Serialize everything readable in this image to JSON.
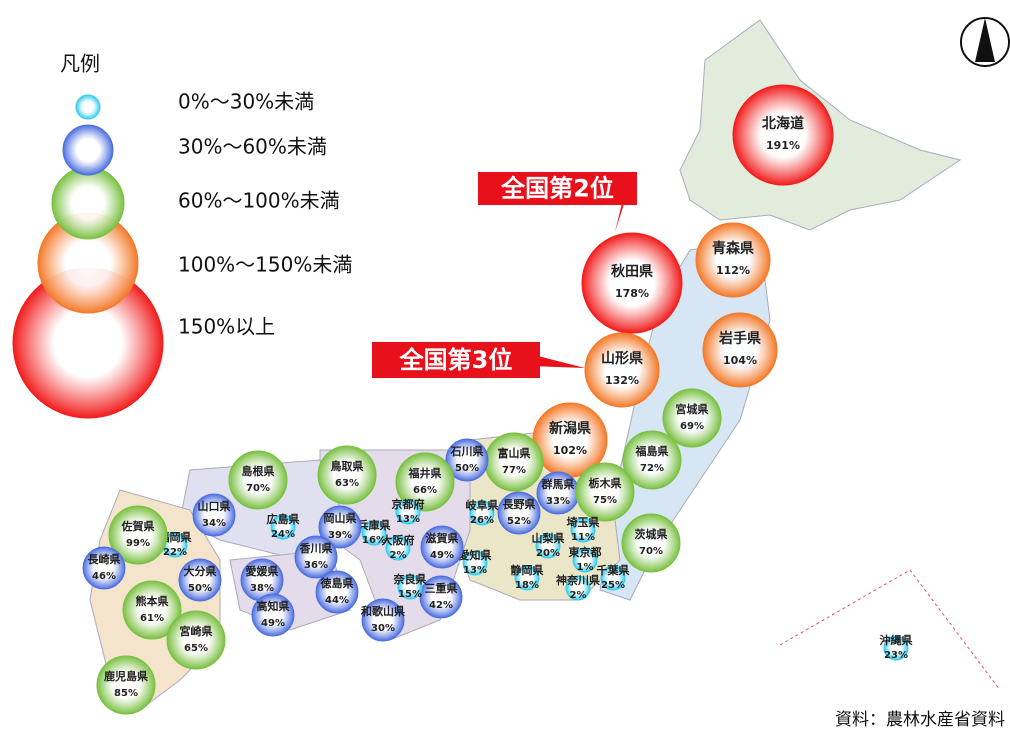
{
  "legend": {
    "title": "凡例",
    "items": [
      {
        "label": "0%～30%未満",
        "min": 0,
        "max": 30,
        "color": "#33ccee"
      },
      {
        "label": "30%～60%未満",
        "min": 30,
        "max": 60,
        "color": "#4d6fe0"
      },
      {
        "label": "60%～100%未満",
        "min": 60,
        "max": 100,
        "color": "#7ac142"
      },
      {
        "label": "100%～150%未満",
        "min": 100,
        "max": 150,
        "color": "#f47a2a"
      },
      {
        "label": "150%以上",
        "min": 150,
        "color": "#f21d1d"
      }
    ]
  },
  "prefectures": [
    {
      "name": "北海道",
      "value": 191,
      "value_label": "191%"
    },
    {
      "name": "秋田県",
      "value": 178,
      "value_label": "178%"
    },
    {
      "name": "青森県",
      "value": 112,
      "value_label": "112%"
    },
    {
      "name": "岩手県",
      "value": 104,
      "value_label": "104%"
    },
    {
      "name": "山形県",
      "value": 132,
      "value_label": "132%"
    },
    {
      "name": "宮城県",
      "value": 69,
      "value_label": "69%"
    },
    {
      "name": "新潟県",
      "value": 102,
      "value_label": "102%"
    },
    {
      "name": "福島県",
      "value": 72,
      "value_label": "72%"
    },
    {
      "name": "富山県",
      "value": 77,
      "value_label": "77%"
    },
    {
      "name": "石川県",
      "value": 50,
      "value_label": "50%"
    },
    {
      "name": "群馬県",
      "value": 33,
      "value_label": "33%"
    },
    {
      "name": "栃木県",
      "value": 75,
      "value_label": "75%"
    },
    {
      "name": "茨城県",
      "value": 70,
      "value_label": "70%"
    },
    {
      "name": "埼玉県",
      "value": 11,
      "value_label": "11%"
    },
    {
      "name": "長野県",
      "value": 52,
      "value_label": "52%"
    },
    {
      "name": "岐阜県",
      "value": 26,
      "value_label": "26%"
    },
    {
      "name": "福井県",
      "value": 66,
      "value_label": "66%"
    },
    {
      "name": "山梨県",
      "value": 20,
      "value_label": "20%"
    },
    {
      "name": "東京都",
      "value": 1,
      "value_label": "1%"
    },
    {
      "name": "千葉県",
      "value": 25,
      "value_label": "25%"
    },
    {
      "name": "神奈川県",
      "value": 2,
      "value_label": "2%"
    },
    {
      "name": "静岡県",
      "value": 18,
      "value_label": "18%"
    },
    {
      "name": "愛知県",
      "value": 13,
      "value_label": "13%"
    },
    {
      "name": "滋賀県",
      "value": 49,
      "value_label": "49%"
    },
    {
      "name": "三重県",
      "value": 42,
      "value_label": "42%"
    },
    {
      "name": "奈良県",
      "value": 15,
      "value_label": "15%"
    },
    {
      "name": "京都府",
      "value": 13,
      "value_label": "13%"
    },
    {
      "name": "大阪府",
      "value": 2,
      "value_label": "2%"
    },
    {
      "name": "兵庫県",
      "value": 16,
      "value_label": "16%"
    },
    {
      "name": "和歌山県",
      "value": 30,
      "value_label": "30%"
    },
    {
      "name": "鳥取県",
      "value": 63,
      "value_label": "63%"
    },
    {
      "name": "島根県",
      "value": 70,
      "value_label": "70%"
    },
    {
      "name": "岡山県",
      "value": 39,
      "value_label": "39%"
    },
    {
      "name": "広島県",
      "value": 24,
      "value_label": "24%"
    },
    {
      "name": "山口県",
      "value": 34,
      "value_label": "34%"
    },
    {
      "name": "香川県",
      "value": 36,
      "value_label": "36%"
    },
    {
      "name": "徳島県",
      "value": 44,
      "value_label": "44%"
    },
    {
      "name": "愛媛県",
      "value": 38,
      "value_label": "38%"
    },
    {
      "name": "高知県",
      "value": 49,
      "value_label": "49%"
    },
    {
      "name": "福岡県",
      "value": 22,
      "value_label": "22%"
    },
    {
      "name": "佐賀県",
      "value": 99,
      "value_label": "99%"
    },
    {
      "name": "長崎県",
      "value": 46,
      "value_label": "46%"
    },
    {
      "name": "大分県",
      "value": 50,
      "value_label": "50%"
    },
    {
      "name": "熊本県",
      "value": 61,
      "value_label": "61%"
    },
    {
      "name": "宮崎県",
      "value": 65,
      "value_label": "65%"
    },
    {
      "name": "鹿児島県",
      "value": 85,
      "value_label": "85%"
    },
    {
      "name": "沖縄県",
      "value": 23,
      "value_label": "23%"
    }
  ],
  "callouts": [
    {
      "text": "全国第2位"
    },
    {
      "text": "全国第3位"
    }
  ],
  "source": "資料：農林水産省資料"
}
